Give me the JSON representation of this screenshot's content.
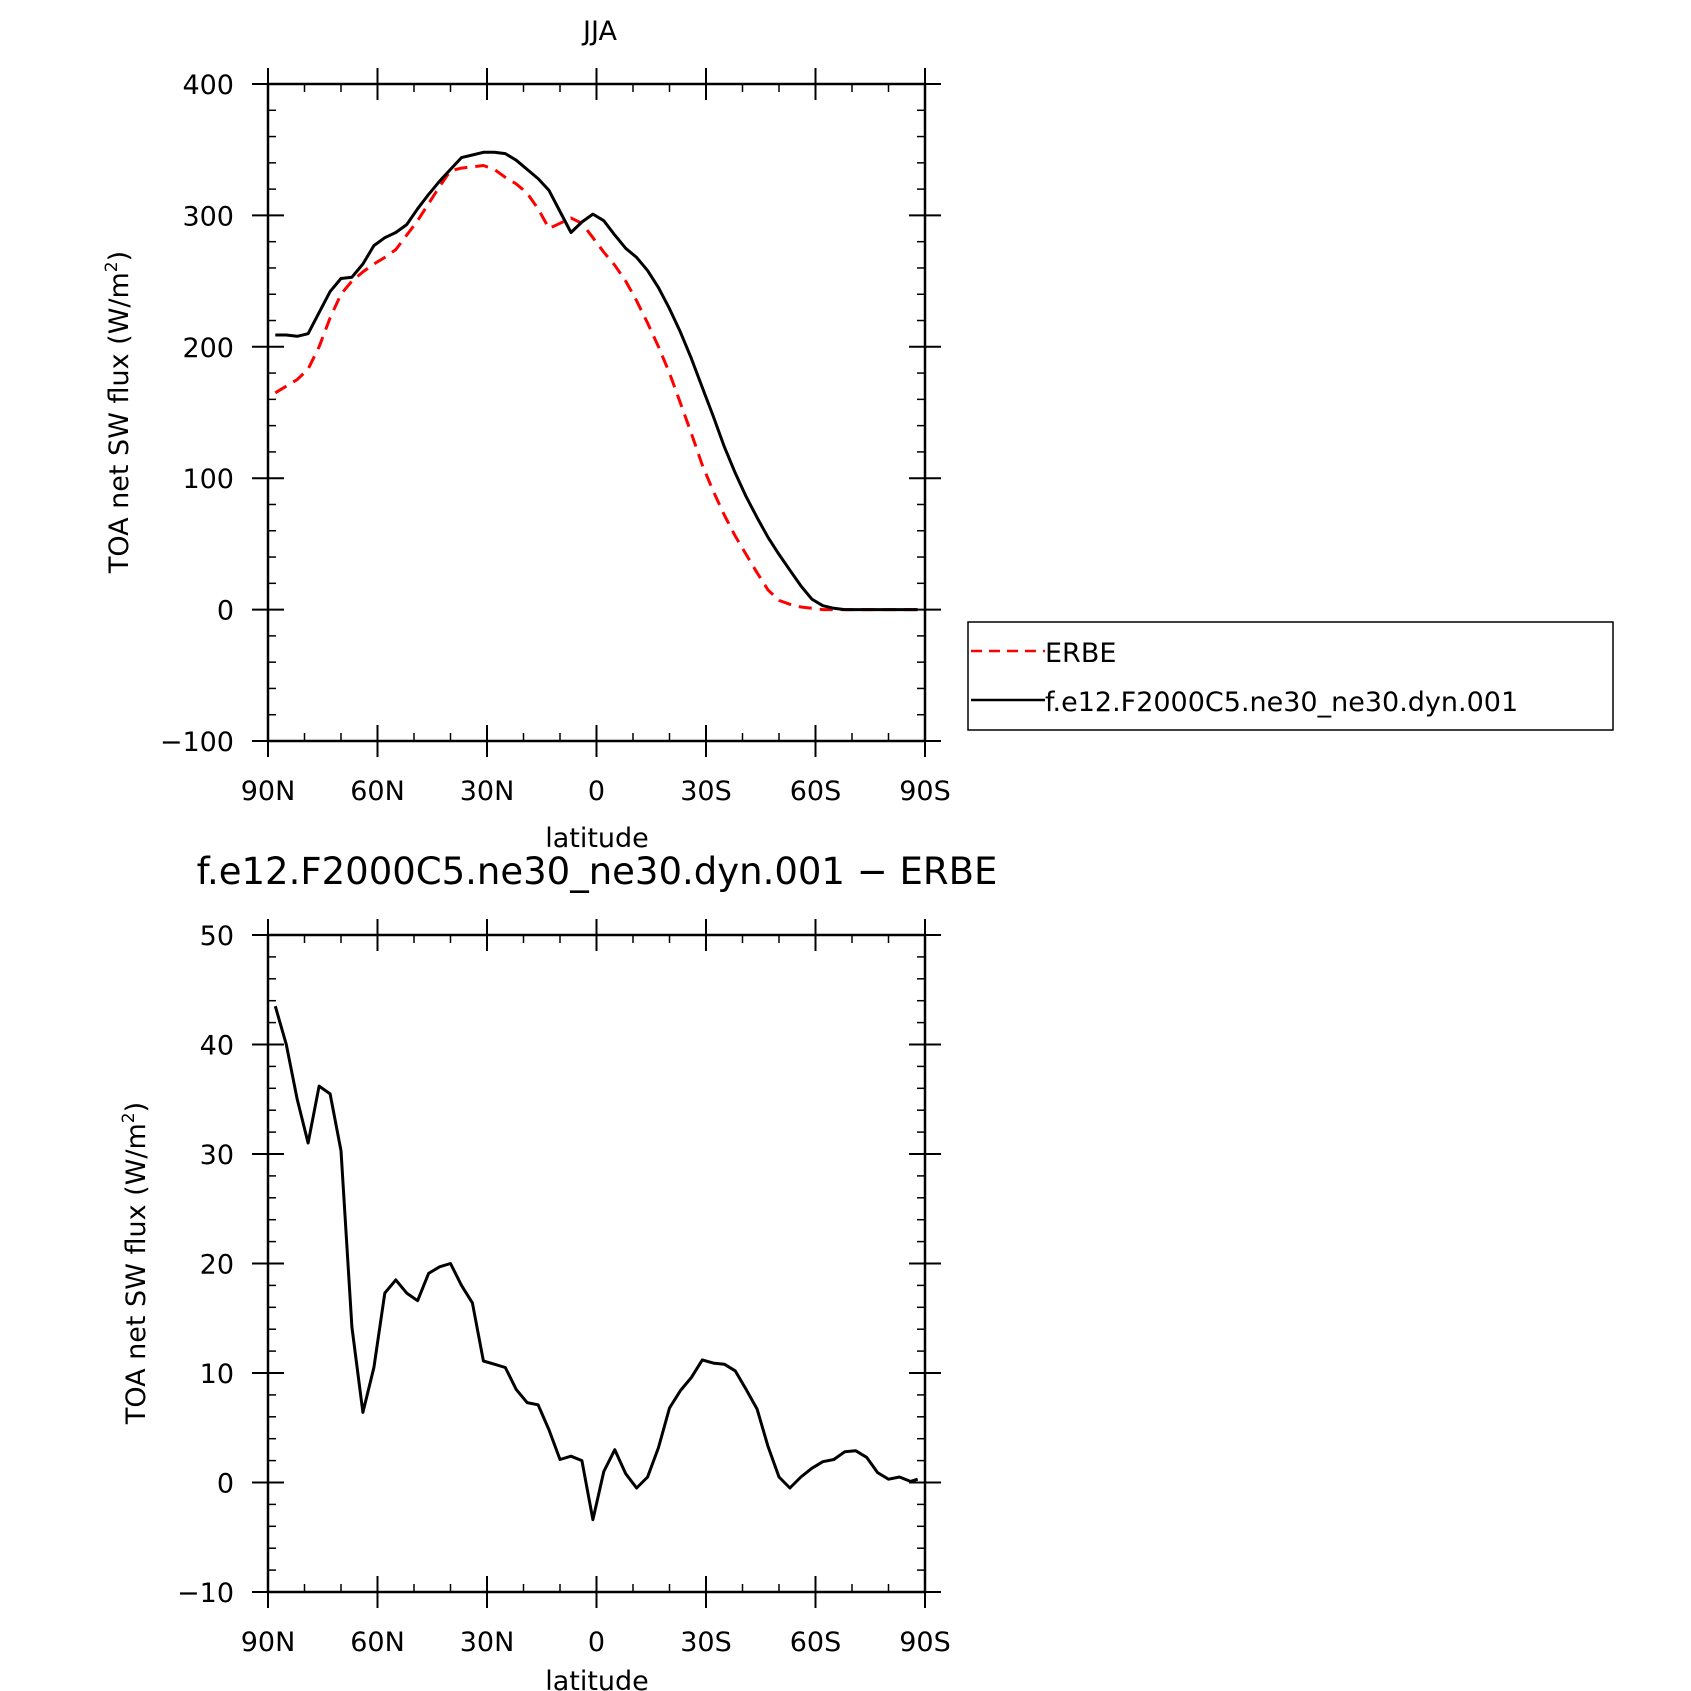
{
  "chart_data": [
    {
      "type": "line",
      "title": "JJA",
      "xlabel": "latitude",
      "ylabel_main": "TOA net SW flux (W/m",
      "ylabel_sup": "2",
      "ylabel_close": ")",
      "xlim": [
        90,
        -90
      ],
      "ylim": [
        -100,
        400
      ],
      "x_ticks": [
        90,
        60,
        30,
        0,
        -30,
        -60,
        -90
      ],
      "x_tick_labels": [
        "90N",
        "60N",
        "30N",
        "0",
        "30S",
        "60S",
        "90S"
      ],
      "y_ticks": [
        -100,
        0,
        100,
        200,
        300,
        400
      ],
      "y_tick_labels": [
        "−100",
        "0",
        "100",
        "200",
        "300",
        "400"
      ],
      "grid": false,
      "legend_position": "right",
      "series": [
        {
          "name": "ERBE",
          "color": "#ff0000",
          "dash": true,
          "x": [
            88,
            85,
            82,
            79,
            76,
            73,
            70,
            67,
            64,
            61,
            58,
            55,
            52,
            49,
            46,
            43,
            40,
            37,
            34,
            31,
            28,
            25,
            22,
            19,
            16,
            13,
            10,
            7,
            4,
            1,
            -2,
            -5,
            -8,
            -11,
            -14,
            -17,
            -20,
            -23,
            -26,
            -29,
            -32,
            -35,
            -38,
            -41,
            -44,
            -47,
            -50,
            -53,
            -56,
            -59,
            -62,
            -65,
            -68,
            -71,
            -74,
            -77,
            -80,
            -83,
            -86,
            -88
          ],
          "y": [
            165,
            170,
            175,
            183,
            200,
            222,
            240,
            250,
            257,
            263,
            268,
            274,
            285,
            296,
            309,
            322,
            334,
            336,
            337,
            338,
            335,
            329,
            324,
            317,
            305,
            290,
            294,
            298,
            294,
            283,
            272,
            262,
            250,
            235,
            218,
            200,
            180,
            157,
            134,
            110,
            90,
            72,
            56,
            42,
            28,
            15,
            7,
            4,
            2,
            1,
            0,
            0,
            0,
            0,
            0,
            0,
            0,
            0,
            0,
            0
          ]
        },
        {
          "name": "f.e12.F2000C5.ne30_ne30.dyn.001",
          "color": "#000000",
          "dash": false,
          "x": [
            88,
            85,
            82,
            79,
            76,
            73,
            70,
            67,
            64,
            61,
            58,
            55,
            52,
            49,
            46,
            43,
            40,
            37,
            34,
            31,
            28,
            25,
            22,
            19,
            16,
            13,
            10,
            7,
            4,
            1,
            -2,
            -5,
            -8,
            -11,
            -14,
            -17,
            -20,
            -23,
            -26,
            -29,
            -32,
            -35,
            -38,
            -41,
            -44,
            -47,
            -50,
            -53,
            -56,
            -59,
            -62,
            -65,
            -68,
            -71,
            -74,
            -77,
            -80,
            -83,
            -86,
            -88
          ],
          "y": [
            209,
            209,
            208,
            210,
            226,
            242,
            252,
            253,
            263,
            277,
            283,
            287,
            293,
            305,
            316,
            326,
            335,
            344,
            346,
            348,
            348,
            347,
            342,
            335,
            328,
            319,
            303,
            287,
            295,
            301,
            296,
            285,
            275,
            268,
            258,
            245,
            229,
            211,
            191,
            169,
            147,
            124,
            104,
            86,
            70,
            55,
            42,
            30,
            18,
            8,
            3,
            1,
            0,
            0,
            0,
            0,
            0,
            0,
            0,
            0
          ]
        }
      ]
    },
    {
      "type": "line",
      "title": "f.e12.F2000C5.ne30_ne30.dyn.001 − ERBE",
      "xlabel": "latitude",
      "ylabel_main": "TOA net SW flux (W/m",
      "ylabel_sup": "2",
      "ylabel_close": ")",
      "xlim": [
        90,
        -90
      ],
      "ylim": [
        -10,
        50
      ],
      "x_ticks": [
        90,
        60,
        30,
        0,
        -30,
        -60,
        -90
      ],
      "x_tick_labels": [
        "90N",
        "60N",
        "30N",
        "0",
        "30S",
        "60S",
        "90S"
      ],
      "y_ticks": [
        -10,
        0,
        10,
        20,
        30,
        40,
        50
      ],
      "y_tick_labels": [
        "−10",
        "0",
        "10",
        "20",
        "30",
        "40",
        "50"
      ],
      "grid": false,
      "series": [
        {
          "color": "#000000",
          "dash": false,
          "x": [
            88,
            85,
            82,
            79,
            76,
            73,
            70,
            67,
            64,
            61,
            58,
            55,
            52,
            49,
            46,
            43,
            40,
            37,
            34,
            31,
            28,
            25,
            22,
            19,
            16,
            13,
            10,
            7,
            4,
            1,
            -2,
            -5,
            -8,
            -11,
            -14,
            -17,
            -20,
            -23,
            -26,
            -29,
            -32,
            -35,
            -38,
            -41,
            -44,
            -47,
            -50,
            -53,
            -56,
            -59,
            -62,
            -65,
            -68,
            -71,
            -74,
            -77,
            -80,
            -83,
            -86,
            -88
          ],
          "y": [
            43.5,
            40,
            35,
            31,
            36.2,
            35.5,
            30.3,
            14.2,
            6.4,
            10.5,
            17.3,
            18.5,
            17.3,
            16.6,
            19.1,
            19.7,
            20,
            18,
            16.4,
            11.1,
            10.8,
            10.5,
            8.5,
            7.3,
            7.1,
            4.8,
            2.1,
            2.4,
            2,
            -3.4,
            1,
            3,
            0.8,
            -0.5,
            0.5,
            3.2,
            6.8,
            8.4,
            9.6,
            11.2,
            10.9,
            10.8,
            10.2,
            8.5,
            6.7,
            3.3,
            0.5,
            -0.5,
            0.5,
            1.3,
            1.9,
            2.1,
            2.8,
            2.9,
            2.3,
            0.9,
            0.3,
            0.5,
            0.1,
            0.3
          ]
        }
      ]
    }
  ]
}
